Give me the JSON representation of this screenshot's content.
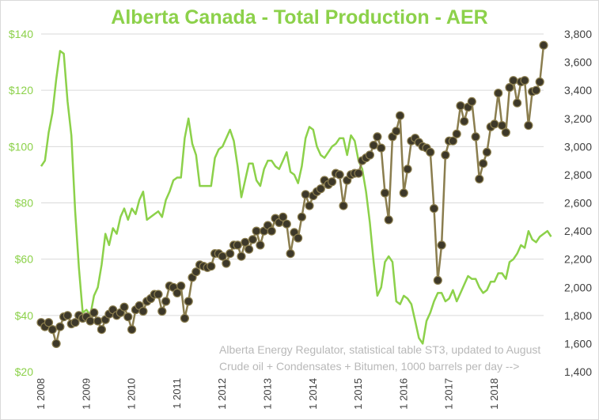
{
  "title": "Alberta Canada - Total Production - AER",
  "annotations": [
    "Alberta Energy Regulator, statistical table ST3, updated to August",
    "Crude oil + Condensates + Bitumen, 1000 barrels per day -->"
  ],
  "colors": {
    "price_line": "#8cd14a",
    "production_line": "#8a7d4e",
    "production_marker": "#3d3829",
    "grid": "#d9d9d9",
    "title": "#8cd14a"
  },
  "chart_data": {
    "type": "line",
    "title": "Alberta Canada - Total Production - AER",
    "grid": "horizontal",
    "legend": "none",
    "x": {
      "start": "2008-01",
      "end": "2018-08",
      "tick_labels": [
        "1 2008",
        "1 2009",
        "1 2010",
        "1 2011",
        "1 2012",
        "1 2013",
        "1 2014",
        "1 2015",
        "1 2016",
        "1 2017",
        "1 2018"
      ]
    },
    "y_left": {
      "range": [
        20,
        140
      ],
      "ticks": [
        20,
        40,
        60,
        80,
        100,
        120,
        140
      ],
      "tick_labels": [
        "$20",
        "$40",
        "$60",
        "$80",
        "$100",
        "$120",
        "$140"
      ]
    },
    "y_right": {
      "range": [
        1400,
        3800
      ],
      "ticks": [
        1400,
        1600,
        1800,
        2000,
        2200,
        2400,
        2600,
        2800,
        3000,
        3200,
        3400,
        3600,
        3800
      ],
      "tick_labels": [
        "1,400",
        "1,600",
        "1,800",
        "2,000",
        "2,200",
        "2,400",
        "2,600",
        "2,800",
        "3,000",
        "3,200",
        "3,400",
        "3,600",
        "3,800"
      ]
    },
    "series": [
      {
        "axis": "left",
        "line_only": true,
        "values": [
          93,
          95,
          105,
          112,
          124,
          134,
          133,
          116,
          104,
          77,
          57,
          41,
          42,
          40,
          47,
          50,
          58,
          69,
          65,
          71,
          69,
          75,
          78,
          74,
          78,
          76,
          81,
          84,
          74,
          75,
          76,
          77,
          75,
          81,
          84,
          88,
          89,
          89,
          103,
          110,
          101,
          97,
          86,
          86,
          86,
          86,
          96,
          99,
          100,
          103,
          106,
          102,
          93,
          82,
          88,
          94,
          94,
          88,
          86,
          92,
          95,
          95,
          93,
          92,
          95,
          98,
          91,
          90,
          87,
          93,
          103,
          107,
          106,
          100,
          97,
          96,
          98,
          100,
          101,
          103,
          103,
          97,
          104,
          102,
          95,
          92,
          84,
          73,
          59,
          47,
          50,
          59,
          61,
          59,
          45,
          44,
          47,
          46,
          44,
          38,
          32,
          30,
          38,
          41,
          45,
          48,
          48,
          45,
          46,
          49,
          45,
          48,
          51,
          54,
          53,
          53,
          50,
          48,
          49,
          52,
          52,
          55,
          55,
          53,
          59,
          60,
          62,
          65,
          64,
          70,
          67,
          66,
          68,
          69,
          70,
          68
        ]
      },
      {
        "axis": "right",
        "values": [
          1750,
          1720,
          1750,
          1700,
          1600,
          1720,
          1790,
          1800,
          1740,
          1750,
          1800,
          1780,
          1790,
          1760,
          1820,
          1760,
          1700,
          1770,
          1810,
          1840,
          1800,
          1820,
          1860,
          1790,
          1700,
          1840,
          1870,
          1830,
          1900,
          1920,
          1950,
          1950,
          1830,
          1900,
          2010,
          2000,
          1960,
          2010,
          1780,
          1900,
          2070,
          2110,
          2160,
          2150,
          2140,
          2150,
          2240,
          2240,
          2220,
          2170,
          2240,
          2300,
          2300,
          2220,
          2320,
          2270,
          2340,
          2400,
          2300,
          2400,
          2440,
          2400,
          2490,
          2460,
          2500,
          2450,
          2240,
          2390,
          2350,
          2500,
          2660,
          2580,
          2650,
          2680,
          2700,
          2760,
          2730,
          2750,
          2810,
          2800,
          2580,
          2760,
          2800,
          2810,
          2810,
          2900,
          2920,
          2940,
          3010,
          3070,
          2990,
          2670,
          2480,
          3070,
          3110,
          3220,
          2670,
          2840,
          3040,
          3060,
          3030,
          3000,
          2990,
          2960,
          2560,
          2050,
          2300,
          2940,
          3040,
          3040,
          3090,
          3290,
          3180,
          3280,
          3320,
          3070,
          2770,
          2880,
          2960,
          3140,
          3160,
          3380,
          3150,
          3100,
          3420,
          3470,
          3310,
          3460,
          3470,
          3150,
          3390,
          3400,
          3460,
          3720
        ]
      }
    ]
  }
}
